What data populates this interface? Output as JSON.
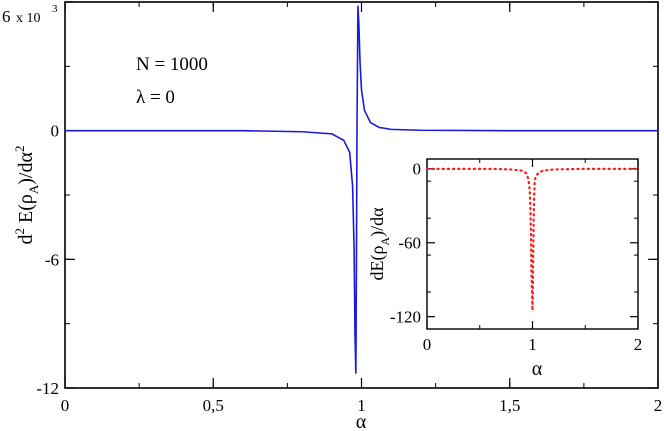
{
  "chart_data": [
    {
      "type": "line",
      "title": "",
      "xlabel": "α",
      "ylabel_parts": {
        "d": "d",
        "sup1": "2",
        "mid": " E(ρ",
        "sub": "A",
        "end": ")/dα",
        "sup2": "2"
      },
      "xlim": [
        0,
        2
      ],
      "ylim": [
        -12,
        6
      ],
      "y_unit_label": "x 10",
      "y_unit_exponent": "3",
      "x_ticks": [
        0,
        0.5,
        1,
        1.5,
        2
      ],
      "x_tick_labels": [
        "0",
        "0,5",
        "1",
        "1,5",
        "2"
      ],
      "y_ticks": [
        -12,
        -6,
        0,
        6
      ],
      "y_tick_labels": [
        "-12",
        "-6",
        "0",
        "6"
      ],
      "annotations": [
        "N = 1000",
        "λ = 0"
      ],
      "grid": false,
      "series": [
        {
          "color": "#1a1adb",
          "style": "solid",
          "x": [
            0,
            0.2,
            0.4,
            0.6,
            0.8,
            0.9,
            0.94,
            0.96,
            0.97,
            0.975,
            0.978,
            0.981,
            0.983,
            0.985,
            0.988,
            0.991,
            0.995,
            1.0,
            1.01,
            1.03,
            1.06,
            1.1,
            1.2,
            1.5,
            2.0
          ],
          "values": [
            0,
            0,
            0,
            0,
            -0.05,
            -0.15,
            -0.45,
            -1.0,
            -2.6,
            -5.5,
            -9.5,
            -11.3,
            -6.0,
            0.5,
            5.8,
            5.0,
            3.2,
            1.9,
            0.95,
            0.38,
            0.15,
            0.06,
            0.02,
            0,
            0
          ]
        }
      ]
    },
    {
      "type": "line",
      "title": "",
      "xlabel": "α",
      "ylabel_parts": {
        "pre": "dE(ρ",
        "sub": "A",
        "end": ")/dα"
      },
      "xlim": [
        0,
        2
      ],
      "ylim": [
        -130,
        8
      ],
      "x_ticks": [
        0,
        1,
        2
      ],
      "x_tick_labels": [
        "0",
        "1",
        "2"
      ],
      "y_ticks": [
        0,
        -60,
        -120
      ],
      "y_tick_labels": [
        "0",
        "-60",
        "-120"
      ],
      "grid": false,
      "series": [
        {
          "color": "#ff1a1a",
          "style": "dotted",
          "x": [
            0,
            0.2,
            0.4,
            0.6,
            0.8,
            0.9,
            0.94,
            0.96,
            0.97,
            0.975,
            0.98,
            0.985,
            0.99,
            1.0,
            1.01,
            1.015,
            1.02,
            1.03,
            1.06,
            1.1,
            1.2,
            1.5,
            2.0
          ],
          "values": [
            0,
            0,
            0,
            0,
            -0.5,
            -1.5,
            -3.5,
            -8,
            -14,
            -20,
            -32,
            -52,
            -82,
            -115,
            -48,
            -25,
            -12,
            -6,
            -3,
            -1.5,
            -0.5,
            0,
            0
          ]
        }
      ]
    }
  ]
}
